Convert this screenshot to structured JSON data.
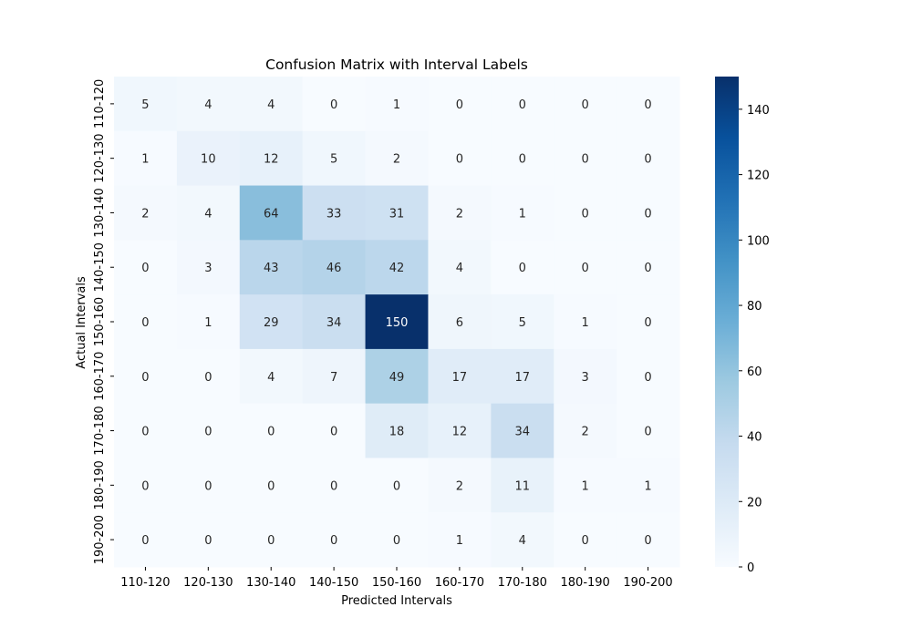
{
  "chart_data": {
    "type": "heatmap",
    "title": "Confusion Matrix with Interval Labels",
    "xlabel": "Predicted Intervals",
    "ylabel": "Actual Intervals",
    "x_categories": [
      "110-120",
      "120-130",
      "130-140",
      "140-150",
      "150-160",
      "160-170",
      "170-180",
      "180-190",
      "190-200"
    ],
    "y_categories": [
      "110-120",
      "120-130",
      "130-140",
      "140-150",
      "150-160",
      "160-170",
      "170-180",
      "180-190",
      "190-200"
    ],
    "values": [
      [
        5,
        4,
        4,
        0,
        1,
        0,
        0,
        0,
        0
      ],
      [
        1,
        10,
        12,
        5,
        2,
        0,
        0,
        0,
        0
      ],
      [
        2,
        4,
        64,
        33,
        31,
        2,
        1,
        0,
        0
      ],
      [
        0,
        3,
        43,
        46,
        42,
        4,
        0,
        0,
        0
      ],
      [
        0,
        1,
        29,
        34,
        150,
        6,
        5,
        1,
        0
      ],
      [
        0,
        0,
        4,
        7,
        49,
        17,
        17,
        3,
        0
      ],
      [
        0,
        0,
        0,
        0,
        18,
        12,
        34,
        2,
        0
      ],
      [
        0,
        0,
        0,
        0,
        0,
        2,
        11,
        1,
        1
      ],
      [
        0,
        0,
        0,
        0,
        0,
        1,
        4,
        0,
        0
      ]
    ],
    "colorbar": {
      "min": 0,
      "max": 150,
      "ticks": [
        0,
        20,
        40,
        60,
        80,
        100,
        120,
        140
      ]
    },
    "colormap": "Blues",
    "colors": {
      "low": "#f7fbff",
      "high": "#08306b"
    },
    "grid": false,
    "legend": "right colorbar"
  }
}
